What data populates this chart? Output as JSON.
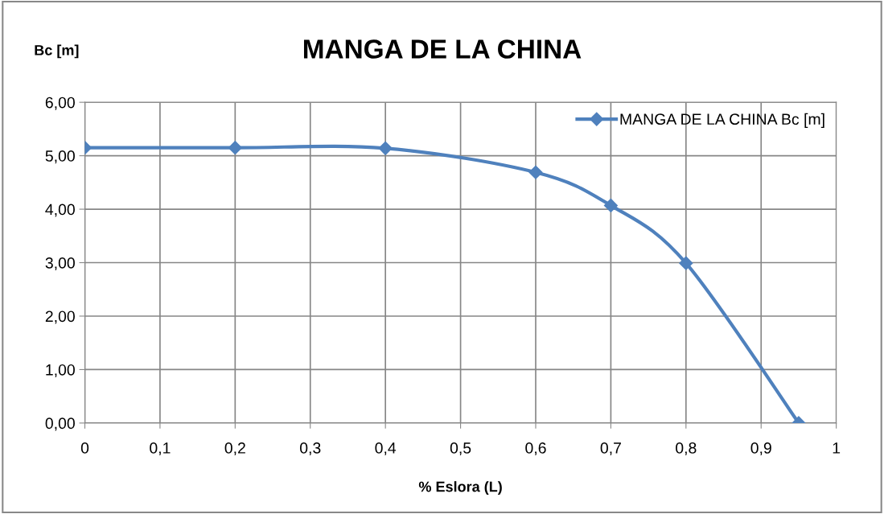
{
  "chart_data": {
    "type": "line",
    "title": "MANGA DE LA CHINA",
    "xlabel": "% Eslora (L)",
    "ylabel": "Bc [m]",
    "x": [
      0,
      0.2,
      0.4,
      0.6,
      0.7,
      0.8,
      0.95
    ],
    "series": [
      {
        "name": "MANGA DE LA CHINA Bc [m]",
        "color": "#4f81bd",
        "values": [
          5.15,
          5.15,
          5.14,
          4.69,
          4.07,
          2.99,
          0.0
        ]
      }
    ],
    "xlim": [
      0,
      1
    ],
    "xticks": [
      0,
      {
        "value": 0.1,
        "label": "0,1"
      },
      {
        "value": 0.2,
        "label": "0,2"
      },
      {
        "value": 0.3,
        "label": "0,3"
      },
      {
        "value": 0.4,
        "label": "0,4"
      },
      {
        "value": 0.5,
        "label": "0,5"
      },
      {
        "value": 0.6,
        "label": "0,6"
      },
      {
        "value": 0.7,
        "label": "0,7"
      },
      {
        "value": 0.8,
        "label": "0,8"
      },
      {
        "value": 0.9,
        "label": "0,9"
      },
      1
    ],
    "ylim": [
      0,
      6
    ],
    "yticks": [
      {
        "value": 0,
        "label": "0,00"
      },
      {
        "value": 1,
        "label": "1,00"
      },
      {
        "value": 2,
        "label": "2,00"
      },
      {
        "value": 3,
        "label": "3,00"
      },
      {
        "value": 4,
        "label": "4,00"
      },
      {
        "value": 5,
        "label": "5,00"
      },
      {
        "value": 6,
        "label": "6,00"
      }
    ],
    "grid": true,
    "legend": "top right",
    "marker": "diamond",
    "line_style": "solid"
  }
}
